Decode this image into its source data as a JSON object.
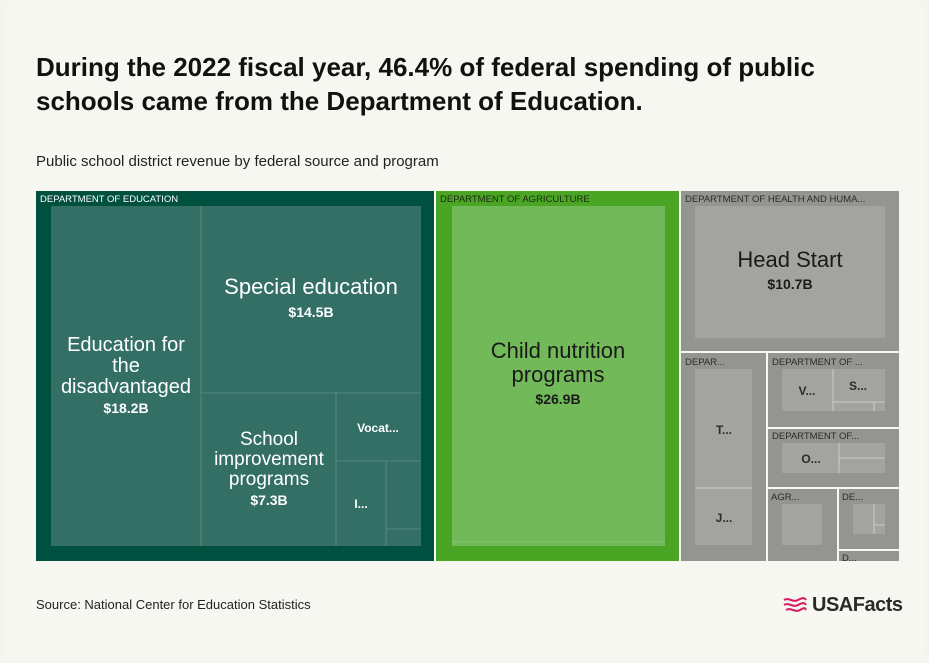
{
  "title": "During the 2022 fiscal year, 46.4% of federal spending of public schools came from the Department of Education.",
  "subtitle": "Public school district revenue by federal source and program",
  "source": "Source: National Center for Education Statistics",
  "brand": {
    "name": "USAFacts",
    "icon": "flag-icon",
    "icon_color": "#d81b60"
  },
  "colors": {
    "education": "#005040",
    "education_inner": "#336f65",
    "agriculture": "#4aa524",
    "agriculture_inner": "#72b95a",
    "gray": "#949490",
    "gray_inner": "#a3a3a0",
    "divider": "#d9d9d5"
  },
  "chart_data": {
    "type": "treemap",
    "title": "Public school district revenue by federal source and program",
    "units": "billions of dollars",
    "groups": [
      {
        "label": "DEPARTMENT OF EDUCATION",
        "color": "#005040",
        "children": [
          {
            "label": "Education for the disadvantaged",
            "display_label": "Education for the disadvantaged",
            "value_label": "$18.2B",
            "value": 18.2
          },
          {
            "label": "Special education",
            "display_label": "Special education",
            "value_label": "$14.5B",
            "value": 14.5
          },
          {
            "label": "School improvement programs",
            "display_label": "School improvement programs",
            "value_label": "$7.3B",
            "value": 7.3
          },
          {
            "label": "Vocational",
            "display_label": "Vocat...",
            "value_label": "",
            "value": 2.6
          },
          {
            "label": "I",
            "display_label": "I...",
            "value_label": "",
            "value": 1.6
          },
          {
            "label": "",
            "display_label": "",
            "value_label": "",
            "value": 0.9
          },
          {
            "label": "",
            "display_label": "",
            "value_label": "",
            "value": 0.3
          }
        ]
      },
      {
        "label": "DEPARTMENT OF AGRICULTURE",
        "color": "#4aa524",
        "children": [
          {
            "label": "Child nutrition programs",
            "display_label": "Child nutrition programs",
            "value_label": "$26.9B",
            "value": 26.9
          }
        ]
      },
      {
        "label": "DEPARTMENT OF HEALTH AND HUMA...",
        "color": "#949490",
        "children": [
          {
            "label": "Head Start",
            "display_label": "Head Start",
            "value_label": "$10.7B",
            "value": 10.7
          }
        ]
      },
      {
        "label": "DEPAR...",
        "color": "#949490",
        "children": [
          {
            "label": "T",
            "display_label": "T...",
            "value": 2.5
          },
          {
            "label": "J",
            "display_label": "J...",
            "value": 1.1
          }
        ]
      },
      {
        "label": "DEPARTMENT OF ...",
        "color": "#949490",
        "children": [
          {
            "label": "V",
            "display_label": "V...",
            "value": 0.8
          },
          {
            "label": "S",
            "display_label": "S...",
            "value": 0.8
          }
        ]
      },
      {
        "label": "DEPARTMENT OF...",
        "color": "#949490",
        "children": [
          {
            "label": "O",
            "display_label": "O...",
            "value": 0.9
          }
        ]
      },
      {
        "label": "AGR...",
        "color": "#949490",
        "children": [
          {
            "label": "",
            "display_label": "",
            "value": 0.7
          }
        ]
      },
      {
        "label": "DE...",
        "color": "#949490",
        "children": [
          {
            "label": "",
            "display_label": "",
            "value": 0.4
          }
        ]
      },
      {
        "label": "D...",
        "color": "#949490",
        "children": []
      }
    ]
  }
}
